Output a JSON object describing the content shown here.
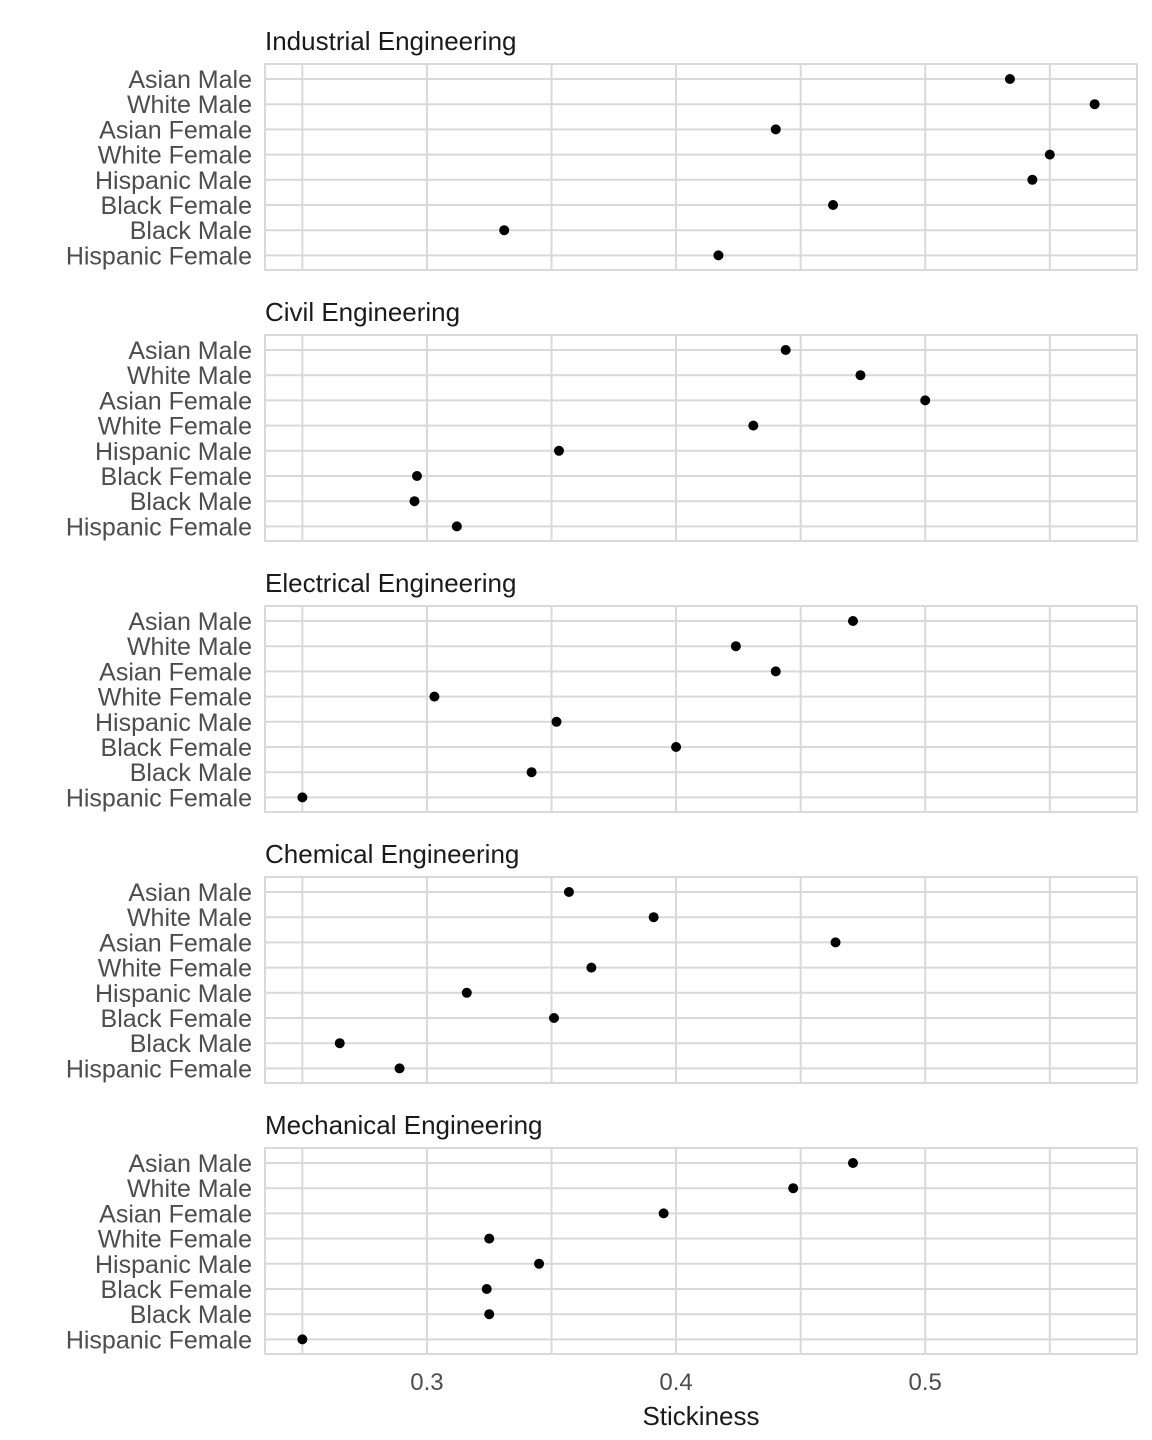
{
  "chart_data": {
    "type": "scatter",
    "xlabel": "Stickiness",
    "xlim": [
      0.235,
      0.585
    ],
    "x_ticks": [
      0.3,
      0.4,
      0.5
    ],
    "x_tick_labels": [
      "0.3",
      "0.4",
      "0.5"
    ],
    "grid": true,
    "point_color": "#000000",
    "categories": [
      "Asian Male",
      "White Male",
      "Asian Female",
      "White Female",
      "Hispanic Male",
      "Black Female",
      "Black Male",
      "Hispanic Female"
    ],
    "panels": [
      {
        "title": "Industrial Engineering",
        "values": [
          0.534,
          0.568,
          0.44,
          0.55,
          0.543,
          0.463,
          0.331,
          0.417
        ]
      },
      {
        "title": "Civil Engineering",
        "values": [
          0.444,
          0.474,
          0.5,
          0.431,
          0.353,
          0.296,
          0.295,
          0.312
        ]
      },
      {
        "title": "Electrical Engineering",
        "values": [
          0.471,
          0.424,
          0.44,
          0.303,
          0.352,
          0.4,
          0.342,
          0.25
        ]
      },
      {
        "title": "Chemical Engineering",
        "values": [
          0.357,
          0.391,
          0.464,
          0.366,
          0.316,
          0.351,
          0.265,
          0.289
        ]
      },
      {
        "title": "Mechanical Engineering",
        "values": [
          0.471,
          0.447,
          0.395,
          0.325,
          0.345,
          0.324,
          0.325,
          0.25
        ]
      }
    ]
  }
}
